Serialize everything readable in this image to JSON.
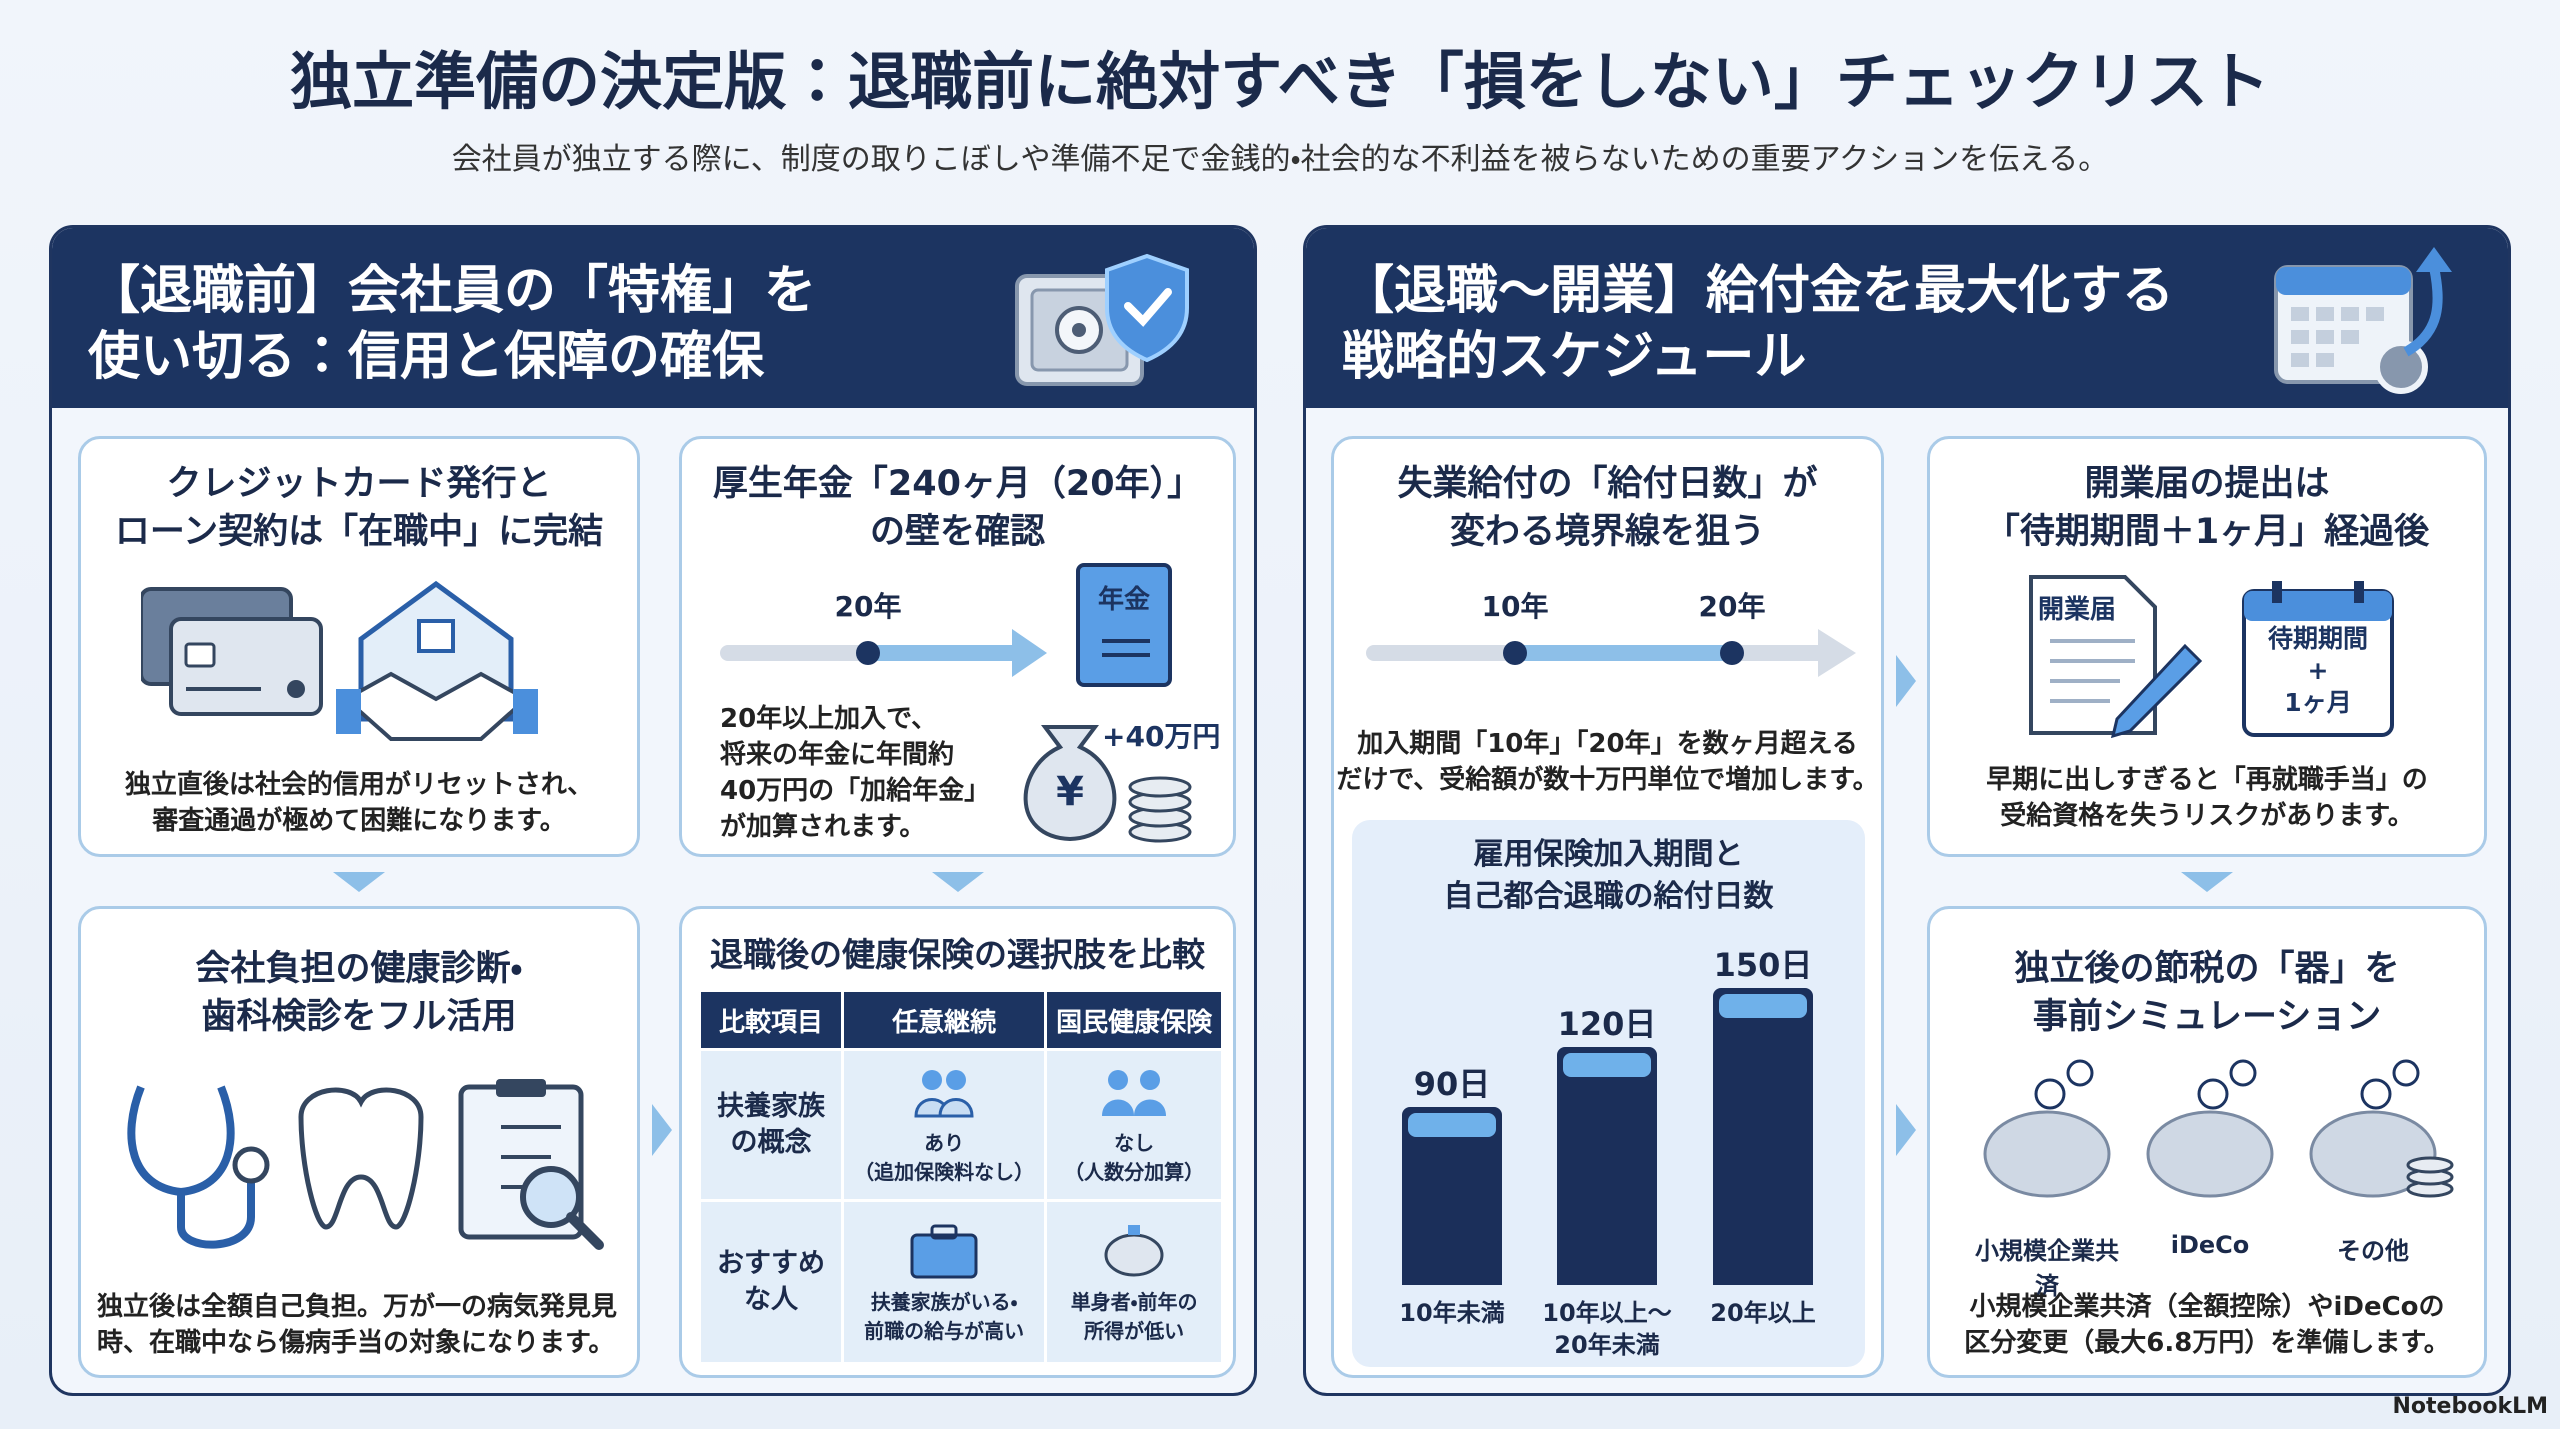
{
  "header": {
    "title": "独立準備の決定版：退職前に絶対すべき「損をしない」チェックリスト",
    "subtitle": "会社員が独立する際に、制度の取りこぼしや準備不足で金銭的・社会的な不利益を被らないための重要アクションを伝える。"
  },
  "left_panel": {
    "title": "【退職前】会社員の「特権」を\n使い切る：信用と保障の確保",
    "cards": [
      {
        "title": "クレジットカード発行と\nローン契約は「在職中」に完結",
        "body": "独立直後は社会的信用がリセットされ、\n審査通過が極めて困難になります。"
      },
      {
        "title": "厚生年金「240ヶ月（20年）」\nの壁を確認",
        "timeline_label": "20年",
        "book_label": "年金",
        "body": "20年以上加入で、\n将来の年金に年間約\n40万円の「加給年金」\nが加算されます。",
        "badge": "+40万円",
        "symbol": "¥"
      },
      {
        "title": "会社負担の健康診断・\n歯科検診をフル活用",
        "body": "独立後は全額自己負担。万が一の病気発見見\n時、在職中なら傷病手当の対象になります。"
      },
      {
        "title": "退職後の健康保険の選択肢を比較",
        "table": {
          "header": [
            "比較項目",
            "任意継続",
            "国民健康保険"
          ],
          "rows": [
            [
              "扶養家族\nの概念",
              "あり\n（追加保険料なし）",
              "なし\n（人数分加算）"
            ],
            [
              "おすすめ\nな人",
              "扶養家族がいる・\n前職の給与が高い",
              "単身者・前年の\n所得が低い"
            ]
          ]
        }
      }
    ]
  },
  "right_panel": {
    "title": "【退職〜開業】給付金を最大化する\n戦略的スケジュール",
    "cards": [
      {
        "title": "失業給付の「給付日数」が\n変わる境界線を狙う",
        "timeline_labels": [
          "10年",
          "20年"
        ],
        "body": "加入期間「10年」「20年」を数ヶ月超える\nだけで、受給額が数十万円単位で増加します。"
      },
      {
        "title": "開業届の提出は\n「待期期間＋1ヶ月」経過後",
        "doc_label": "開業届",
        "calendar_label": "待期期間\n+\n1ヶ月",
        "body": "早期に出しすぎると「再就職手当」の\n受給資格を失うリスクがあります。"
      },
      {
        "title": "独立後の節税の「器」を\n事前シミュレーション",
        "labels": [
          "小規模企業共済",
          "iDeCo",
          "その他"
        ],
        "body": "小規模企業共済（全額控除）やiDeCoの\n区分変更（最大6.8万円）を準備します。"
      }
    ]
  },
  "chart_data": {
    "type": "bar",
    "title": "雇用保険加入期間と\n自己都合退職の給付日数",
    "categories": [
      "10年未満",
      "10年以上〜\n20年未満",
      "20年以上"
    ],
    "values": [
      90,
      120,
      150
    ],
    "value_labels": [
      "90日",
      "120日",
      "150日"
    ],
    "color": "#1b2f5a"
  },
  "footer": "NotebookLM"
}
